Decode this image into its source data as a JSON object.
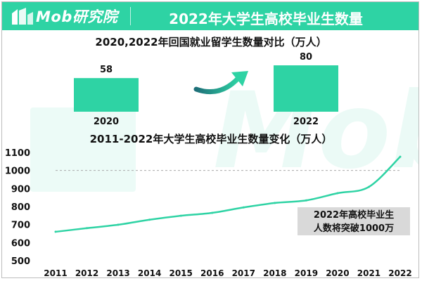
{
  "header": {
    "brand": "Mob研究院",
    "title": "2022年大学生高校毕业生数量",
    "accent_color": "#2ed3a4"
  },
  "watermark_text": "Mob",
  "chart_data": [
    {
      "type": "bar",
      "title": "2020,2022年回国就业留学生数量对比（万人）",
      "categories": [
        "2020",
        "2022"
      ],
      "values": [
        58,
        80
      ],
      "color": "#2ed3a4",
      "arrow_icon": "trend-up-arrow-icon",
      "ylim": [
        0,
        80
      ]
    },
    {
      "type": "line",
      "title": "2011-2022年大学生高校毕业生数量变化（万人）",
      "x": [
        "2011",
        "2012",
        "2013",
        "2014",
        "2015",
        "2016",
        "2017",
        "2018",
        "2019",
        "2020",
        "2021",
        "2022"
      ],
      "series": [
        {
          "name": "高校毕业生数量",
          "values": [
            660,
            680,
            699,
            727,
            749,
            765,
            795,
            820,
            834,
            874,
            909,
            1076
          ]
        }
      ],
      "yticks": [
        500,
        600,
        700,
        800,
        900,
        1000,
        1100
      ],
      "ylim": [
        500,
        1100
      ],
      "reference_line": 1000,
      "color": "#2ed3a4",
      "callout": [
        "2022年高校毕业生",
        "人数将突破1000万"
      ]
    }
  ]
}
